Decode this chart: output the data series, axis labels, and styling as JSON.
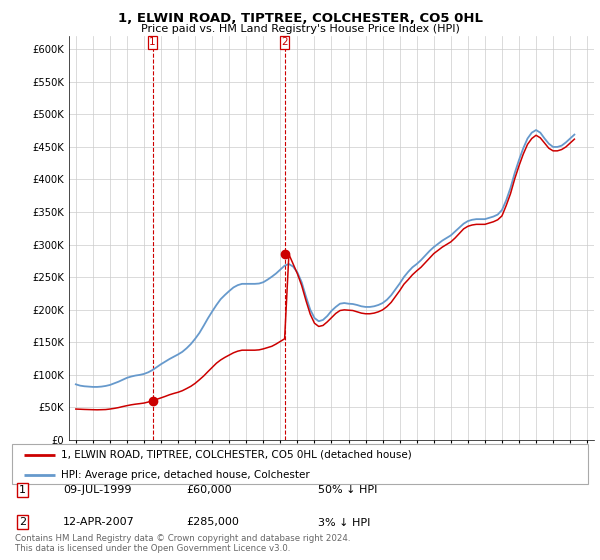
{
  "title": "1, ELWIN ROAD, TIPTREE, COLCHESTER, CO5 0HL",
  "subtitle": "Price paid vs. HM Land Registry's House Price Index (HPI)",
  "legend_line1": "1, ELWIN ROAD, TIPTREE, COLCHESTER, CO5 0HL (detached house)",
  "legend_line2": "HPI: Average price, detached house, Colchester",
  "footer": "Contains HM Land Registry data © Crown copyright and database right 2024.\nThis data is licensed under the Open Government Licence v3.0.",
  "table": [
    {
      "label": "1",
      "date": "09-JUL-1999",
      "price": "£60,000",
      "hpi": "50% ↓ HPI"
    },
    {
      "label": "2",
      "date": "12-APR-2007",
      "price": "£285,000",
      "hpi": "3% ↓ HPI"
    }
  ],
  "hpi_color": "#6699cc",
  "price_color": "#cc0000",
  "marker_color": "#cc0000",
  "background_color": "#ffffff",
  "grid_color": "#cccccc",
  "ylim": [
    0,
    620000
  ],
  "yticks": [
    0,
    50000,
    100000,
    150000,
    200000,
    250000,
    300000,
    350000,
    400000,
    450000,
    500000,
    550000,
    600000
  ],
  "hpi_data": {
    "years": [
      1995.0,
      1995.25,
      1995.5,
      1995.75,
      1996.0,
      1996.25,
      1996.5,
      1996.75,
      1997.0,
      1997.25,
      1997.5,
      1997.75,
      1998.0,
      1998.25,
      1998.5,
      1998.75,
      1999.0,
      1999.25,
      1999.5,
      1999.75,
      2000.0,
      2000.25,
      2000.5,
      2000.75,
      2001.0,
      2001.25,
      2001.5,
      2001.75,
      2002.0,
      2002.25,
      2002.5,
      2002.75,
      2003.0,
      2003.25,
      2003.5,
      2003.75,
      2004.0,
      2004.25,
      2004.5,
      2004.75,
      2005.0,
      2005.25,
      2005.5,
      2005.75,
      2006.0,
      2006.25,
      2006.5,
      2006.75,
      2007.0,
      2007.25,
      2007.5,
      2007.75,
      2008.0,
      2008.25,
      2008.5,
      2008.75,
      2009.0,
      2009.25,
      2009.5,
      2009.75,
      2010.0,
      2010.25,
      2010.5,
      2010.75,
      2011.0,
      2011.25,
      2011.5,
      2011.75,
      2012.0,
      2012.25,
      2012.5,
      2012.75,
      2013.0,
      2013.25,
      2013.5,
      2013.75,
      2014.0,
      2014.25,
      2014.5,
      2014.75,
      2015.0,
      2015.25,
      2015.5,
      2015.75,
      2016.0,
      2016.25,
      2016.5,
      2016.75,
      2017.0,
      2017.25,
      2017.5,
      2017.75,
      2018.0,
      2018.25,
      2018.5,
      2018.75,
      2019.0,
      2019.25,
      2019.5,
      2019.75,
      2020.0,
      2020.25,
      2020.5,
      2020.75,
      2021.0,
      2021.25,
      2021.5,
      2021.75,
      2022.0,
      2022.25,
      2022.5,
      2022.75,
      2023.0,
      2023.25,
      2023.5,
      2023.75,
      2024.0,
      2024.25
    ],
    "values": [
      85000,
      83000,
      82000,
      81500,
      81000,
      81000,
      81500,
      82500,
      84000,
      86500,
      89000,
      92000,
      95000,
      97000,
      98500,
      99500,
      101000,
      103500,
      107000,
      111500,
      116000,
      120000,
      124000,
      127500,
      131000,
      135000,
      140500,
      147000,
      155000,
      164000,
      175000,
      186500,
      197000,
      207000,
      216000,
      222500,
      228500,
      234000,
      237500,
      239500,
      239500,
      239500,
      239500,
      240000,
      242000,
      246000,
      250500,
      255500,
      261500,
      267500,
      270000,
      266000,
      257000,
      242000,
      220000,
      200000,
      187000,
      182000,
      184000,
      190000,
      198000,
      204000,
      209000,
      210000,
      209000,
      208500,
      207000,
      205000,
      204000,
      204000,
      205000,
      207000,
      210000,
      215000,
      222000,
      231000,
      240000,
      250000,
      258000,
      265000,
      270000,
      276000,
      283000,
      290000,
      296000,
      301000,
      306000,
      310000,
      314000,
      320000,
      326000,
      332000,
      336000,
      338000,
      339000,
      339000,
      339000,
      341000,
      343000,
      346000,
      353000,
      368000,
      387000,
      410000,
      430000,
      448000,
      463000,
      472000,
      476000,
      472000,
      463000,
      455000,
      450000,
      450000,
      452000,
      457000,
      463000,
      469000
    ]
  },
  "price_data": {
    "years": [
      1995.0,
      1999.5,
      2007.25
    ],
    "values": [
      47000,
      60000,
      285000
    ],
    "interp_years": [
      1995.0,
      1995.25,
      1995.5,
      1995.75,
      1996.0,
      1996.25,
      1996.5,
      1996.75,
      1997.0,
      1997.25,
      1997.5,
      1997.75,
      1998.0,
      1998.25,
      1998.5,
      1998.75,
      1999.0,
      1999.25,
      1999.5,
      1999.75,
      2000.0,
      2000.25,
      2000.5,
      2000.75,
      2001.0,
      2001.25,
      2001.5,
      2001.75,
      2002.0,
      2002.25,
      2002.5,
      2002.75,
      2003.0,
      2003.25,
      2003.5,
      2003.75,
      2004.0,
      2004.25,
      2004.5,
      2004.75,
      2005.0,
      2005.25,
      2005.5,
      2005.75,
      2006.0,
      2006.25,
      2006.5,
      2006.75,
      2007.0,
      2007.25,
      2007.5,
      2007.75,
      2008.0,
      2008.25,
      2008.5,
      2008.75,
      2009.0,
      2009.25,
      2009.5,
      2009.75,
      2010.0,
      2010.25,
      2010.5,
      2010.75,
      2011.0,
      2011.25,
      2011.5,
      2011.75,
      2012.0,
      2012.25,
      2012.5,
      2012.75,
      2013.0,
      2013.25,
      2013.5,
      2013.75,
      2014.0,
      2014.25,
      2014.5,
      2014.75,
      2015.0,
      2015.25,
      2015.5,
      2015.75,
      2016.0,
      2016.25,
      2016.5,
      2016.75,
      2017.0,
      2017.25,
      2017.5,
      2017.75,
      2018.0,
      2018.25,
      2018.5,
      2018.75,
      2019.0,
      2019.25,
      2019.5,
      2019.75,
      2020.0,
      2020.25,
      2020.5,
      2020.75,
      2021.0,
      2021.25,
      2021.5,
      2021.75,
      2022.0,
      2022.25,
      2022.5,
      2022.75,
      2023.0,
      2023.25,
      2023.5,
      2023.75,
      2024.0,
      2024.25
    ],
    "interp_values": [
      47000,
      46700,
      46400,
      46200,
      46000,
      45800,
      46000,
      46200,
      47000,
      48000,
      49200,
      50800,
      52200,
      53500,
      54500,
      55300,
      56200,
      57800,
      60000,
      62000,
      64200,
      66500,
      69000,
      71000,
      72800,
      75200,
      78500,
      82000,
      86500,
      92000,
      97800,
      104500,
      111000,
      117500,
      122500,
      126500,
      130000,
      133500,
      136000,
      137500,
      137500,
      137500,
      137500,
      138000,
      139500,
      141500,
      143500,
      147000,
      151000,
      155000,
      285000,
      270000,
      255000,
      237000,
      214000,
      193000,
      179000,
      174000,
      175500,
      181000,
      187500,
      194000,
      198500,
      199500,
      199000,
      198500,
      196500,
      194500,
      193500,
      193500,
      194500,
      196500,
      199500,
      204500,
      211000,
      220000,
      229000,
      239000,
      246000,
      253500,
      259500,
      265000,
      272000,
      279000,
      286000,
      291000,
      296000,
      300000,
      304000,
      310000,
      317000,
      324000,
      328000,
      330000,
      331000,
      331000,
      331000,
      333000,
      335000,
      338000,
      344000,
      360000,
      378000,
      401000,
      421000,
      439000,
      454000,
      463000,
      468000,
      464000,
      456000,
      448000,
      444000,
      444000,
      446000,
      450000,
      456000,
      462000
    ]
  },
  "sale1": {
    "year": 1999.5,
    "price": 60000
  },
  "sale2": {
    "year": 2007.25,
    "price": 285000
  },
  "xlim_min": 1994.6,
  "xlim_max": 2025.4
}
